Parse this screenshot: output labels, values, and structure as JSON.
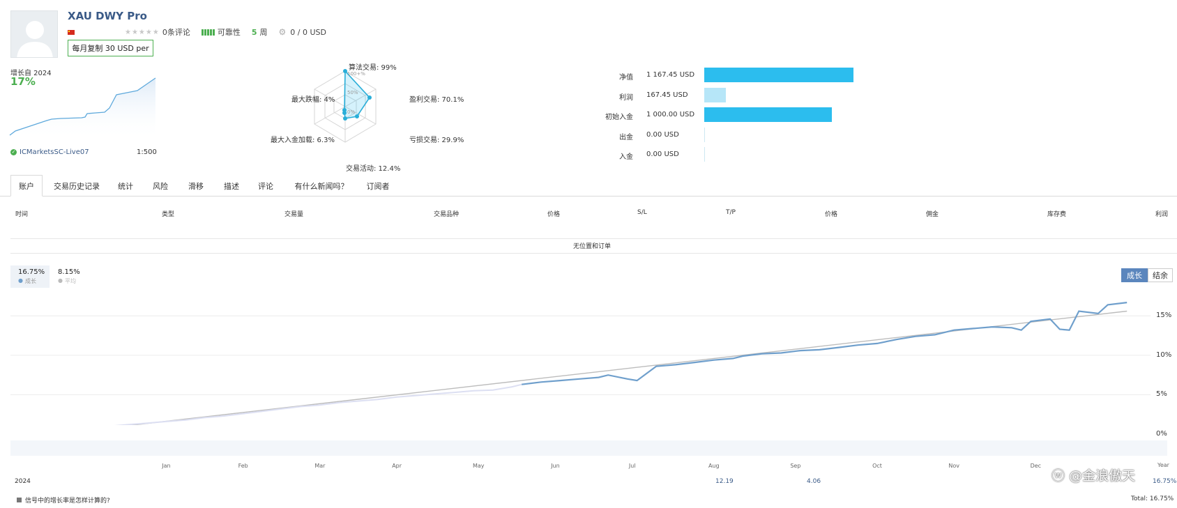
{
  "profile": {
    "title": "XAU DWY Pro",
    "reviews": "0条评论",
    "reliability": "可靠性",
    "weeks_num": "5",
    "weeks_label": "周",
    "subscribers": "0 / 0 USD",
    "copy_button": "每月复制 30 USD per",
    "growth_label": "增长自 2024",
    "growth_value": "17%",
    "broker": "ICMarketsSC-Live07",
    "leverage": "1:500"
  },
  "radar": {
    "algo": "算法交易: 99%",
    "profit_trades": "盈利交易: 70.1%",
    "loss_trades": "亏损交易: 29.9%",
    "activity": "交易活动: 12.4%",
    "max_deposit_load": "最大入金加载: 6.3%",
    "max_drawdown": "最大跌幅: 4%",
    "t100": "100+%",
    "t50": "50%",
    "t0": "0%"
  },
  "balance": [
    {
      "label": "净值",
      "value": "1 167.45 USD",
      "amount": 1167.45,
      "color": "#2cbdee"
    },
    {
      "label": "利润",
      "value": "167.45 USD",
      "amount": 167.45,
      "color": "#b6e6f8"
    },
    {
      "label": "初始入金",
      "value": "1 000.00 USD",
      "amount": 1000.0,
      "color": "#2cbdee"
    },
    {
      "label": "出金",
      "value": "0.00 USD",
      "amount": 0,
      "color": "#2cbdee"
    },
    {
      "label": "入金",
      "value": "0.00 USD",
      "amount": 0,
      "color": "#2cbdee"
    }
  ],
  "tabs": [
    "账户",
    "交易历史记录",
    "统计",
    "风险",
    "滑移",
    "描述",
    "评论",
    "有什么新闻吗？",
    "订阅者"
  ],
  "table": {
    "headers": [
      "时间",
      "类型",
      "交易量",
      "交易品种",
      "价格",
      "S/L",
      "T/P",
      "价格",
      "佣金",
      "库存费",
      "利润"
    ],
    "empty": "无位置和订单"
  },
  "chart_stats": {
    "growth_value": "16.75%",
    "growth_label": "成长",
    "ma_value": "8.15%",
    "ma_label": "平均",
    "btn_growth": "成长",
    "btn_balance": "结余"
  },
  "footer": {
    "year": "2024",
    "aug": "12.19",
    "sep": "4.06",
    "year_total": "16.75%",
    "year_label": "Year",
    "note": "信号中的增长率是怎样计算的?",
    "total": "Total: 16.75%",
    "watermark": "@金浪傲天"
  },
  "chart_data": {
    "type": "line",
    "xlim": [
      0,
      117
    ],
    "ylim": [
      -1.5,
      17.5
    ],
    "x_ticks": [
      0,
      5,
      10,
      15,
      20,
      25,
      30,
      35,
      40,
      45,
      50,
      55,
      60,
      65,
      70,
      75,
      80,
      85,
      90,
      95,
      100,
      105,
      110,
      115
    ],
    "y_ticks": [
      0,
      5,
      10,
      15
    ],
    "y_tick_labels": [
      "0%",
      "5%",
      "10%",
      "15%"
    ],
    "months": [
      {
        "label": "Jan",
        "x": 16
      },
      {
        "label": "Feb",
        "x": 24
      },
      {
        "label": "Mar",
        "x": 32
      },
      {
        "label": "Apr",
        "x": 40
      },
      {
        "label": "May",
        "x": 48.5
      },
      {
        "label": "Jun",
        "x": 56.5
      },
      {
        "label": "Jul",
        "x": 64.5
      },
      {
        "label": "Aug",
        "x": 73
      },
      {
        "label": "Sep",
        "x": 81.5
      },
      {
        "label": "Oct",
        "x": 90
      },
      {
        "label": "Nov",
        "x": 98
      },
      {
        "label": "Dec",
        "x": 106.5
      }
    ],
    "series": [
      {
        "name": "成长",
        "color": "#6f9fcc",
        "values": [
          [
            0,
            -0.1
          ],
          [
            2,
            0.0
          ],
          [
            4,
            0.4
          ],
          [
            6,
            0.6
          ],
          [
            8,
            0.8
          ],
          [
            10,
            1.0
          ],
          [
            12,
            1.2
          ],
          [
            14,
            1.4
          ],
          [
            16,
            1.6
          ],
          [
            18,
            1.8
          ],
          [
            20,
            2.1
          ],
          [
            22,
            2.3
          ],
          [
            24,
            2.6
          ],
          [
            26,
            2.9
          ],
          [
            28,
            3.2
          ],
          [
            30,
            3.5
          ],
          [
            32,
            3.7
          ],
          [
            34,
            4.0
          ],
          [
            36,
            4.2
          ],
          [
            38,
            4.4
          ],
          [
            40,
            4.7
          ],
          [
            42,
            4.9
          ],
          [
            44,
            5.1
          ],
          [
            46,
            5.3
          ],
          [
            48,
            5.5
          ],
          [
            50,
            5.6
          ],
          [
            52,
            6.0
          ],
          [
            53,
            6.3
          ],
          [
            55,
            6.6
          ],
          [
            57,
            6.8
          ],
          [
            59,
            7.0
          ],
          [
            61,
            7.2
          ],
          [
            62,
            7.5
          ],
          [
            64,
            7.0
          ],
          [
            65,
            6.8
          ],
          [
            67,
            8.6
          ],
          [
            69,
            8.8
          ],
          [
            71,
            9.1
          ],
          [
            73,
            9.4
          ],
          [
            75,
            9.6
          ],
          [
            76,
            9.9
          ],
          [
            78,
            10.2
          ],
          [
            80,
            10.3
          ],
          [
            82,
            10.6
          ],
          [
            84,
            10.7
          ],
          [
            86,
            11.0
          ],
          [
            88,
            11.3
          ],
          [
            90,
            11.5
          ],
          [
            92,
            12.0
          ],
          [
            94,
            12.4
          ],
          [
            96,
            12.6
          ],
          [
            98,
            13.2
          ],
          [
            100,
            13.4
          ],
          [
            102,
            13.6
          ],
          [
            104,
            13.5
          ],
          [
            105,
            13.2
          ],
          [
            106,
            14.3
          ],
          [
            108,
            14.6
          ],
          [
            109,
            13.3
          ],
          [
            110,
            13.2
          ],
          [
            111,
            15.6
          ],
          [
            113,
            15.3
          ],
          [
            114,
            16.4
          ],
          [
            116,
            16.7
          ]
        ]
      },
      {
        "name": "平均",
        "color": "#bcbcbc",
        "values": [
          [
            0,
            -0.6
          ],
          [
            116,
            15.6
          ]
        ]
      }
    ]
  }
}
